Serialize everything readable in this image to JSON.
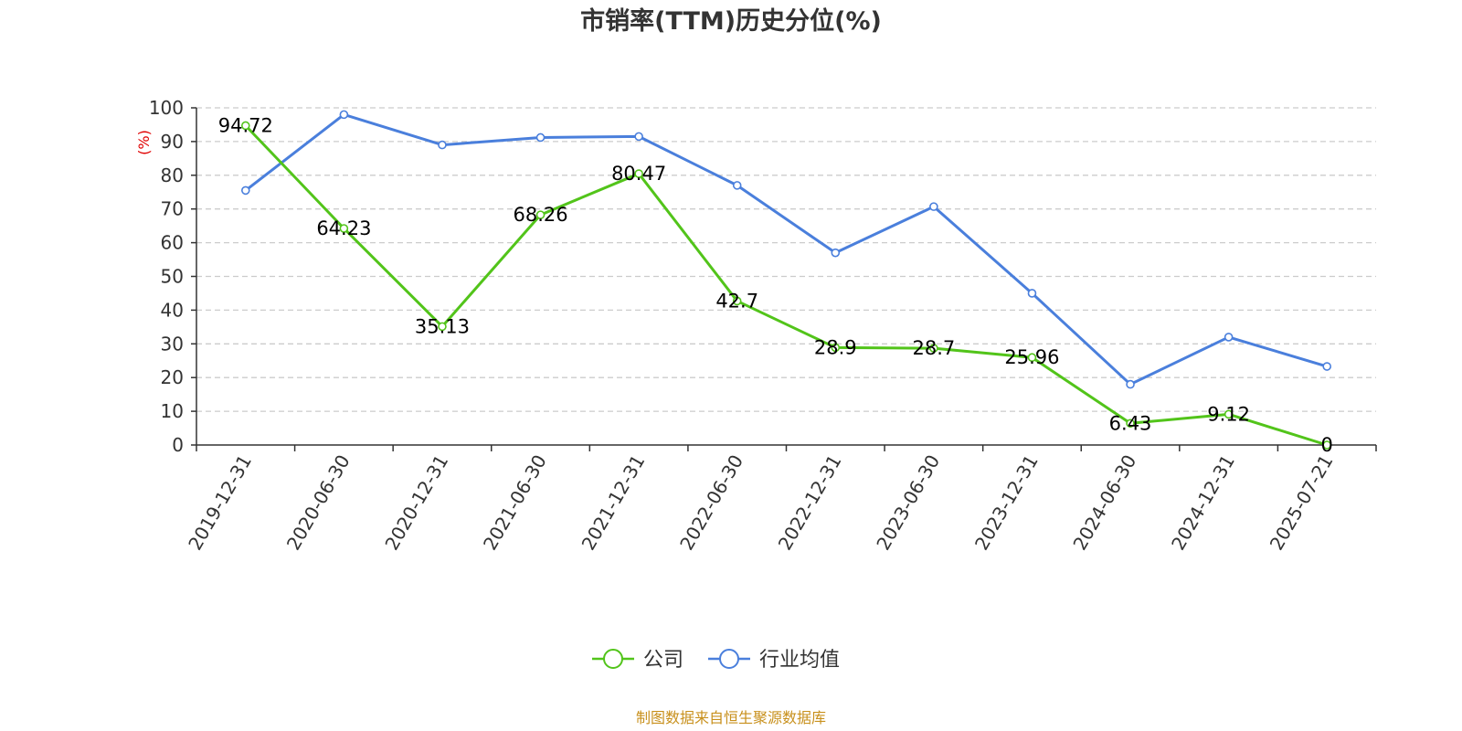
{
  "chart_data": {
    "type": "line",
    "title": "市销率(TTM)历史分位(%)",
    "ylabel": "(%)",
    "ylim": [
      0,
      100
    ],
    "yticks": [
      0,
      10,
      20,
      30,
      40,
      50,
      60,
      70,
      80,
      90,
      100
    ],
    "categories": [
      "2019-12-31",
      "2020-06-30",
      "2020-12-31",
      "2021-06-30",
      "2021-12-31",
      "2022-06-30",
      "2022-12-31",
      "2023-06-30",
      "2023-12-31",
      "2024-06-30",
      "2024-12-31",
      "2025-07-21"
    ],
    "series": [
      {
        "name": "公司",
        "color": "#52c41a",
        "values": [
          94.72,
          64.23,
          35.13,
          68.26,
          80.47,
          42.7,
          28.9,
          28.7,
          25.96,
          6.43,
          9.12,
          0
        ],
        "labels": [
          "94.72",
          "64.23",
          "35.13",
          "68.26",
          "80.47",
          "42.7",
          "28.9",
          "28.7",
          "25.96",
          "6.43",
          "9.12",
          "0"
        ]
      },
      {
        "name": "行业均值",
        "color": "#4a7fdc",
        "values": [
          75.5,
          98,
          89,
          91.2,
          91.5,
          77,
          57,
          70.7,
          45,
          18,
          32,
          23.3
        ]
      }
    ],
    "grid": "horizontal-dashed",
    "legend_position": "bottom-center",
    "source": "制图数据来自恒生聚源数据库",
    "colors": {
      "axis": "#333333",
      "grid": "#cccccc",
      "ylabel": "#e00000",
      "source": "#c8901c"
    }
  }
}
